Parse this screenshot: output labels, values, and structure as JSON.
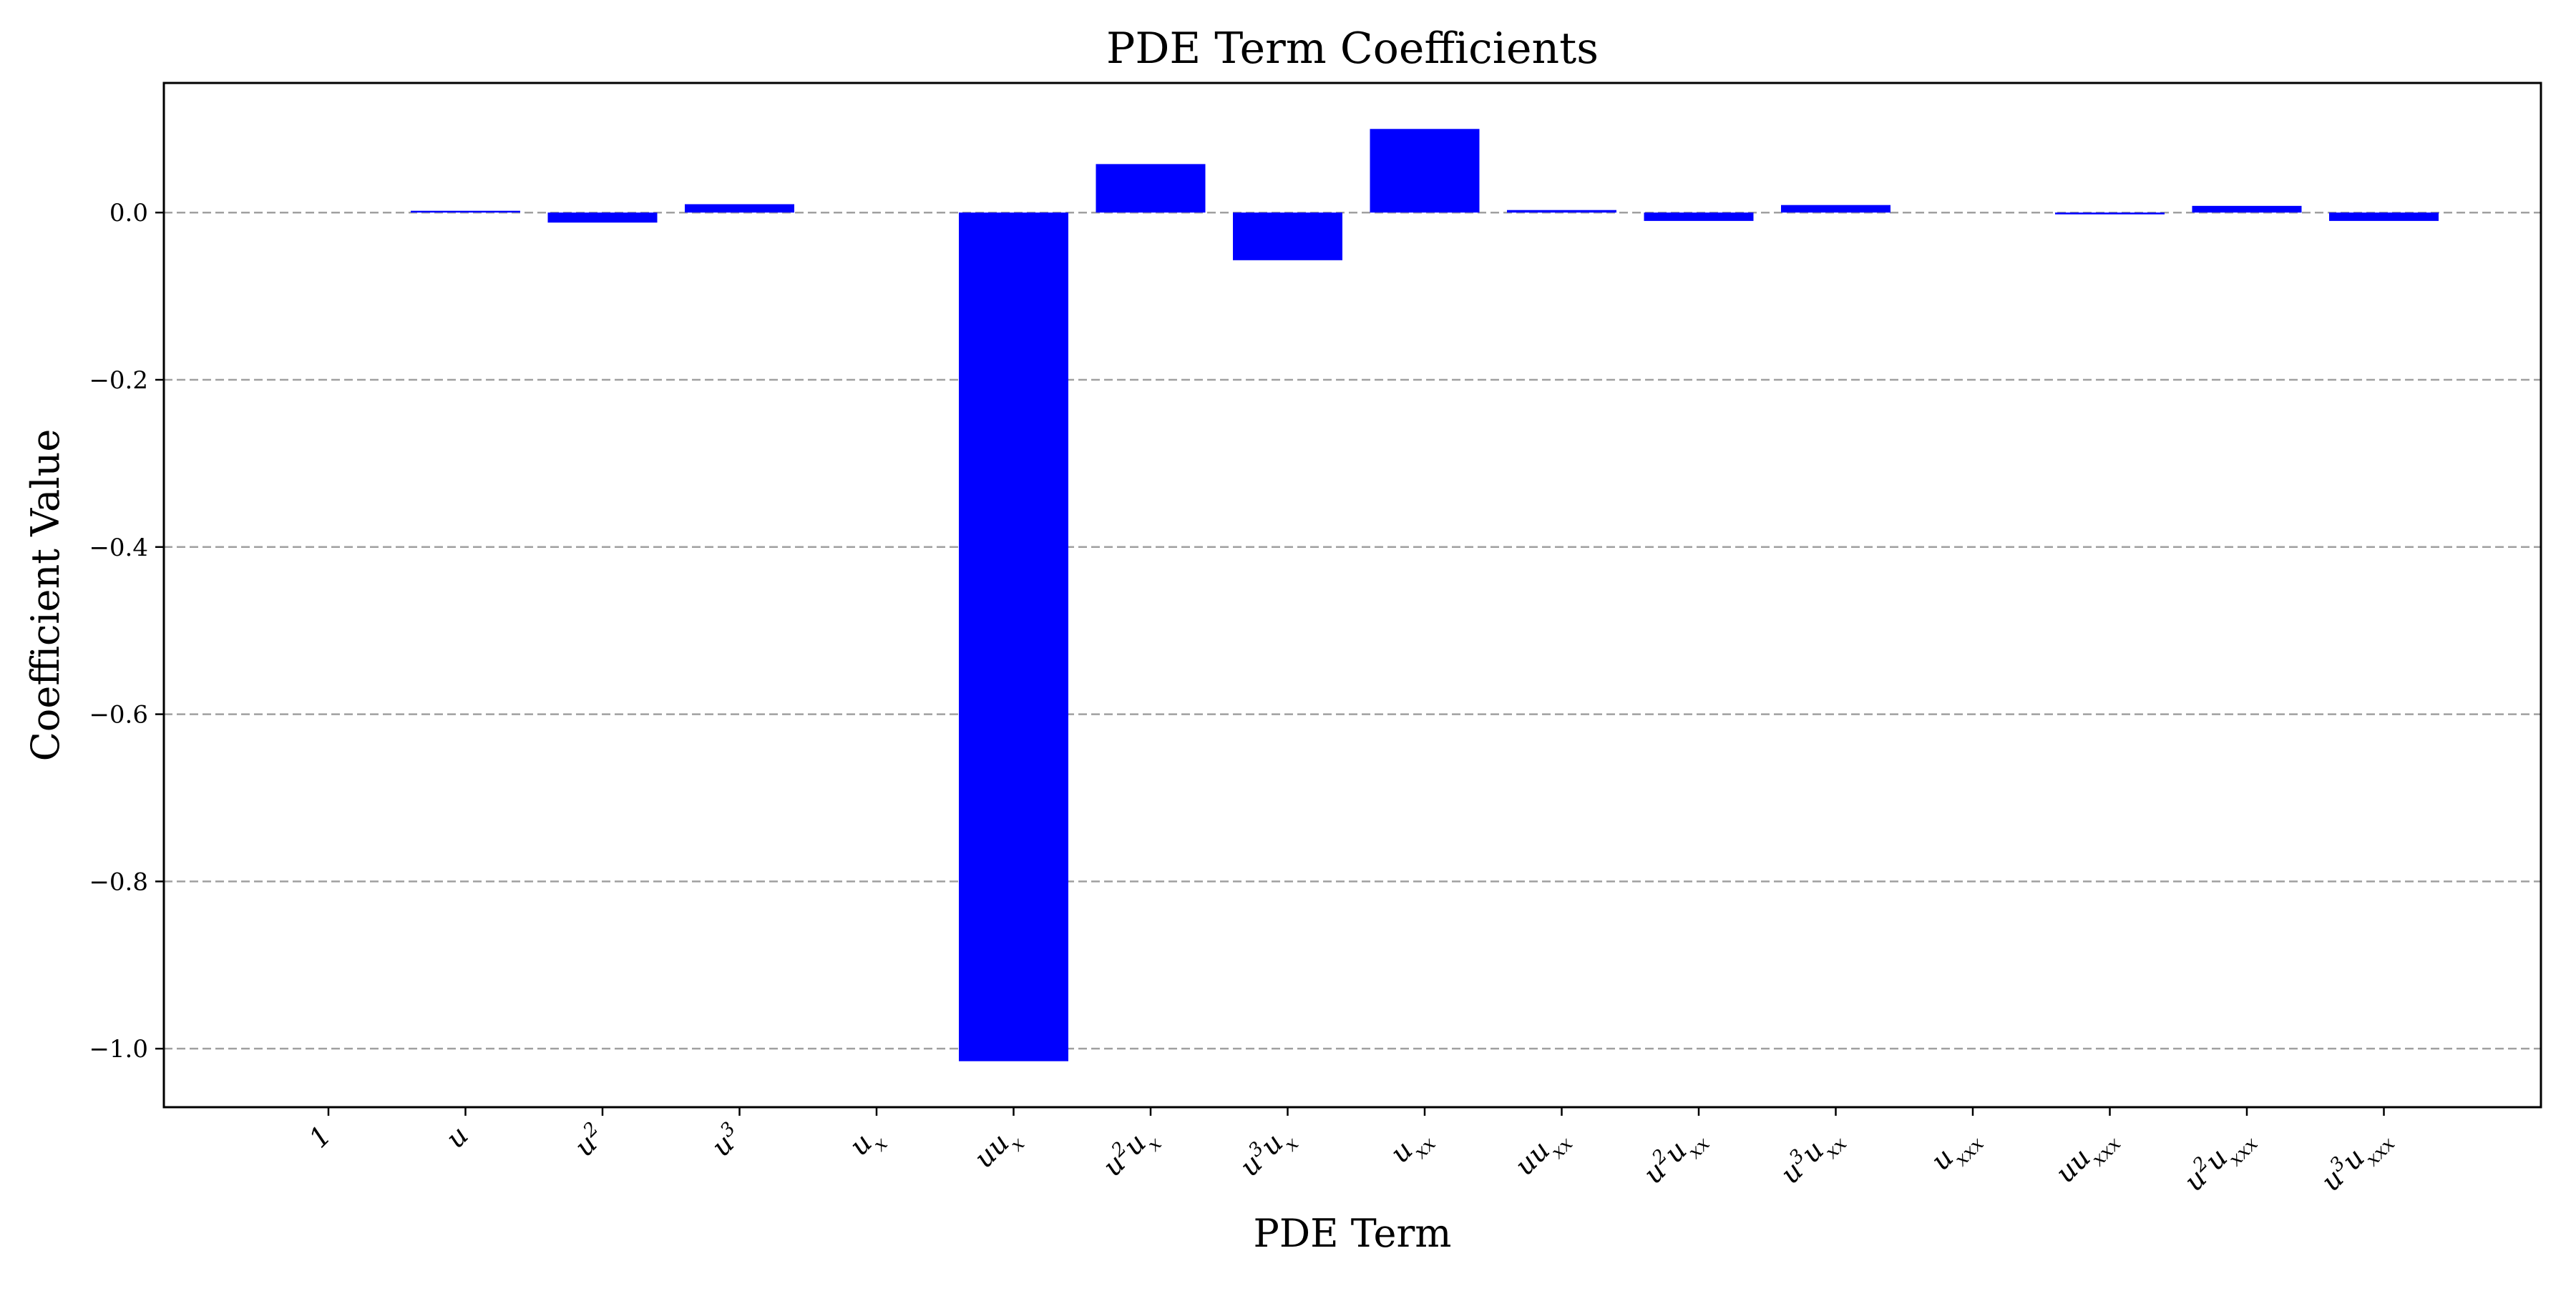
{
  "chart_data": {
    "type": "bar",
    "title": "PDE Term Coefficients",
    "xlabel": "PDE Term",
    "ylabel": "Coefficient Value",
    "categories": [
      {
        "base": "1",
        "sup": "",
        "sub": ""
      },
      {
        "base": "u",
        "sup": "",
        "sub": ""
      },
      {
        "base": "u",
        "sup": "2",
        "sub": ""
      },
      {
        "base": "u",
        "sup": "3",
        "sub": ""
      },
      {
        "base": "u",
        "sup": "",
        "sub": "x"
      },
      {
        "base": "uu",
        "sup": "",
        "sub": "x"
      },
      {
        "base": "u",
        "sup": "2",
        "sub": "x",
        "pre": "u"
      },
      {
        "base": "u",
        "sup": "3",
        "sub": "x",
        "pre": "u"
      },
      {
        "base": "u",
        "sup": "",
        "sub": "xx"
      },
      {
        "base": "uu",
        "sup": "",
        "sub": "xx"
      },
      {
        "base": "u",
        "sup": "2",
        "sub": "xx",
        "pre": "u"
      },
      {
        "base": "u",
        "sup": "3",
        "sub": "xx",
        "pre": "u"
      },
      {
        "base": "u",
        "sup": "",
        "sub": "xxx"
      },
      {
        "base": "uu",
        "sup": "",
        "sub": "xxx"
      },
      {
        "base": "u",
        "sup": "2",
        "sub": "xxx",
        "pre": "u"
      },
      {
        "base": "u",
        "sup": "3",
        "sub": "xxx",
        "pre": "u"
      }
    ],
    "values": [
      0.0,
      0.002,
      -0.012,
      0.01,
      0.0,
      -1.015,
      0.058,
      -0.057,
      0.1,
      0.003,
      -0.01,
      0.009,
      0.0,
      -0.002,
      0.008,
      -0.01
    ],
    "ylim": [
      -1.07,
      0.155
    ],
    "yticks": [
      0.0,
      -0.2,
      -0.4,
      -0.6,
      -0.8,
      -1.0
    ],
    "ytick_labels": [
      "0.0",
      "−0.2",
      "−0.4",
      "−0.6",
      "−0.8",
      "−1.0"
    ],
    "grid": "y-dashed",
    "bar_color": "#0000ff"
  }
}
